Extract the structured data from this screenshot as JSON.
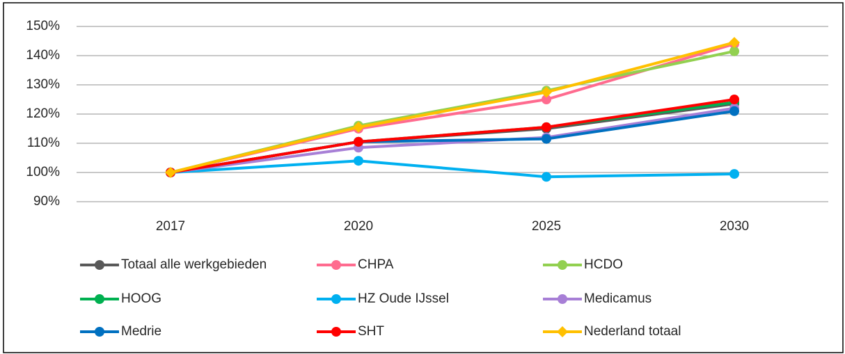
{
  "chart_data": {
    "type": "line",
    "categories": [
      "2017",
      "2020",
      "2025",
      "2030"
    ],
    "ylim": [
      90,
      150
    ],
    "yticks": [
      {
        "value": 90,
        "label": "90%"
      },
      {
        "value": 100,
        "label": "100%"
      },
      {
        "value": 110,
        "label": "110%"
      },
      {
        "value": 120,
        "label": "120%"
      },
      {
        "value": 130,
        "label": "130%"
      },
      {
        "value": 140,
        "label": "140%"
      },
      {
        "value": 150,
        "label": "150%"
      }
    ],
    "grid": true,
    "legend": "bottom",
    "series": [
      {
        "name": "Totaal alle werkgebieden",
        "color": "#595959",
        "marker": "circle",
        "values": [
          100,
          110.5,
          115,
          123.5
        ]
      },
      {
        "name": "CHPA",
        "color": "#ff6b8f",
        "marker": "circle",
        "values": [
          100,
          115,
          125,
          144
        ]
      },
      {
        "name": "HCDO",
        "color": "#92d050",
        "marker": "circle",
        "values": [
          100,
          116,
          128,
          141.5
        ]
      },
      {
        "name": "HOOG",
        "color": "#00b050",
        "marker": "circle",
        "values": [
          100,
          110.5,
          115.5,
          124
        ]
      },
      {
        "name": "HZ Oude IJssel",
        "color": "#00b0f0",
        "marker": "circle",
        "values": [
          100,
          104,
          98.5,
          99.5
        ]
      },
      {
        "name": "Medicamus",
        "color": "#a77fd6",
        "marker": "circle",
        "values": [
          100,
          108.5,
          112,
          122
        ]
      },
      {
        "name": "Medrie",
        "color": "#0070c0",
        "marker": "circle",
        "values": [
          100,
          110.5,
          111.5,
          121
        ]
      },
      {
        "name": "SHT",
        "color": "#ff0000",
        "marker": "circle",
        "values": [
          100,
          110.5,
          115.5,
          125
        ]
      },
      {
        "name": "Nederland totaal",
        "color": "#ffc000",
        "marker": "diamond",
        "values": [
          100,
          115.5,
          127.5,
          144.5
        ]
      }
    ]
  }
}
